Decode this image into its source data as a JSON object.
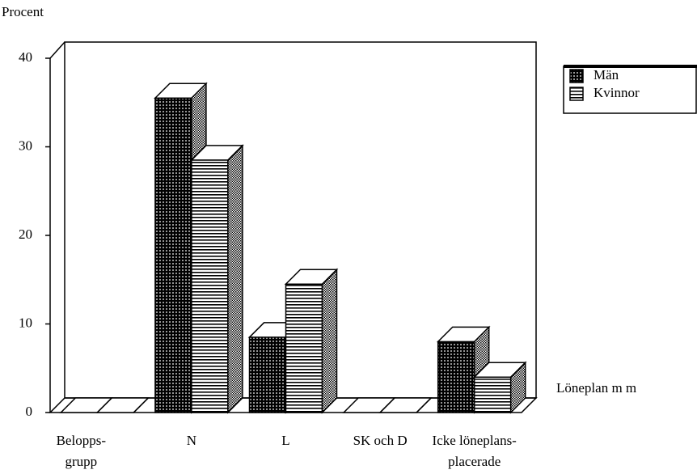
{
  "chart_data": {
    "type": "bar3d",
    "y_label": "Procent",
    "x_label": "Löneplan m m",
    "categories": [
      [
        "Belopps-",
        "grupp"
      ],
      [
        "N"
      ],
      [
        "L"
      ],
      [
        "SK och D"
      ],
      [
        "Icke löneplans-",
        "placerade"
      ]
    ],
    "series": [
      {
        "name": "Män",
        "color": "#000000",
        "values": [
          0,
          35.5,
          8.5,
          0,
          8
        ]
      },
      {
        "name": "Kvinnor",
        "color": "#ffffff",
        "values": [
          0,
          28.5,
          14.5,
          0,
          4
        ]
      }
    ],
    "ylim": [
      0,
      40
    ],
    "yticks": [
      0,
      10,
      20,
      30,
      40
    ],
    "legend": "right"
  }
}
